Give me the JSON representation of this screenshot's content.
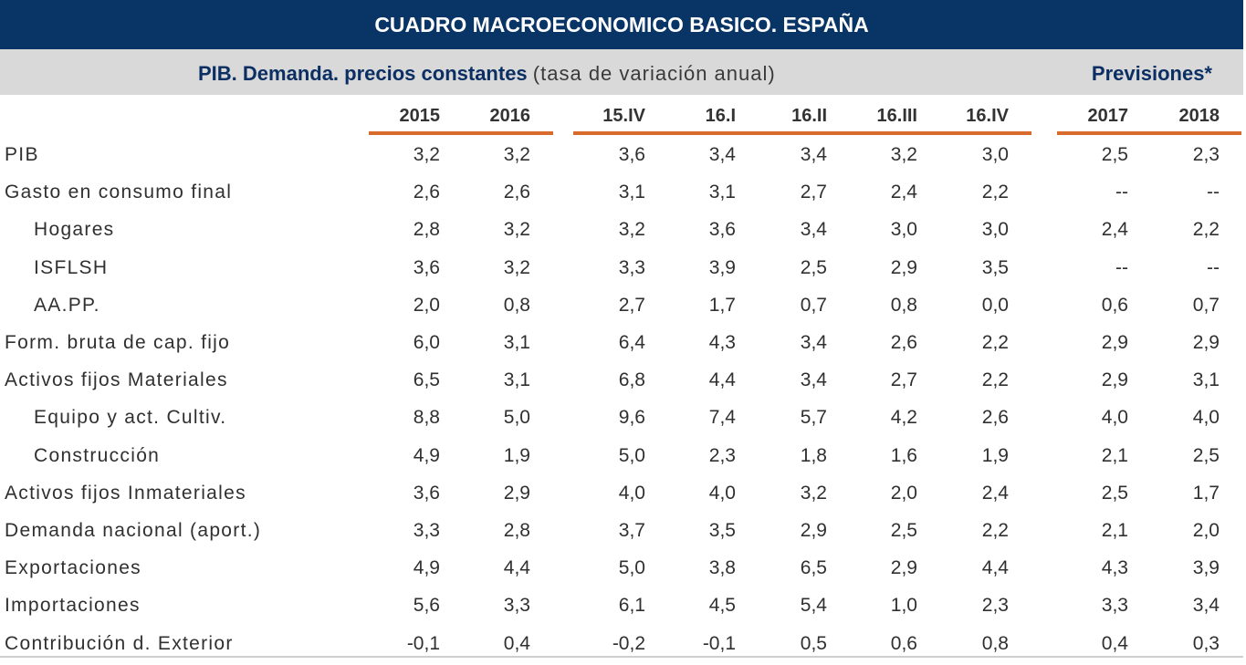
{
  "title": "CUADRO MACROECONOMICO BASICO. ESPAÑA",
  "subtitle": {
    "bold": "PIB. Demanda. precios constantes",
    "normal": "(tasa de variación anual)"
  },
  "previsiones": "Previsiones*",
  "columns": [
    "2015",
    "2016",
    "15.IV",
    "16.I",
    "16.II",
    "16.III",
    "16.IV",
    "2017",
    "2018"
  ],
  "rows": [
    {
      "label": "PIB",
      "indent": false,
      "values": [
        "3,2",
        "3,2",
        "3,6",
        "3,4",
        "3,4",
        "3,2",
        "3,0",
        "2,5",
        "2,3"
      ]
    },
    {
      "label": "Gasto en consumo final",
      "indent": false,
      "values": [
        "2,6",
        "2,6",
        "3,1",
        "3,1",
        "2,7",
        "2,4",
        "2,2",
        "--",
        "--"
      ]
    },
    {
      "label": "Hogares",
      "indent": true,
      "values": [
        "2,8",
        "3,2",
        "3,2",
        "3,6",
        "3,4",
        "3,0",
        "3,0",
        "2,4",
        "2,2"
      ]
    },
    {
      "label": "ISFLSH",
      "indent": true,
      "values": [
        "3,6",
        "3,2",
        "3,3",
        "3,9",
        "2,5",
        "2,9",
        "3,5",
        "--",
        "--"
      ]
    },
    {
      "label": "AA.PP.",
      "indent": true,
      "values": [
        "2,0",
        "0,8",
        "2,7",
        "1,7",
        "0,7",
        "0,8",
        "0,0",
        "0,6",
        "0,7"
      ]
    },
    {
      "label": "Form. bruta de cap. fijo",
      "indent": false,
      "values": [
        "6,0",
        "3,1",
        "6,4",
        "4,3",
        "3,4",
        "2,6",
        "2,2",
        "2,9",
        "2,9"
      ]
    },
    {
      "label": "Activos fijos Materiales",
      "indent": false,
      "values": [
        "6,5",
        "3,1",
        "6,8",
        "4,4",
        "3,4",
        "2,7",
        "2,2",
        "2,9",
        "3,1"
      ]
    },
    {
      "label": "Equipo y act. Cultiv.",
      "indent": true,
      "values": [
        "8,8",
        "5,0",
        "9,6",
        "7,4",
        "5,7",
        "4,2",
        "2,6",
        "4,0",
        "4,0"
      ]
    },
    {
      "label": "Construcción",
      "indent": true,
      "values": [
        "4,9",
        "1,9",
        "5,0",
        "2,3",
        "1,8",
        "1,6",
        "1,9",
        "2,1",
        "2,5"
      ]
    },
    {
      "label": "Activos fijos Inmateriales",
      "indent": false,
      "values": [
        "3,6",
        "2,9",
        "4,0",
        "4,0",
        "3,2",
        "2,0",
        "2,4",
        "2,5",
        "1,7"
      ]
    },
    {
      "label": "Demanda nacional (aport.)",
      "indent": false,
      "values": [
        "3,3",
        "2,8",
        "3,7",
        "3,5",
        "2,9",
        "2,5",
        "2,2",
        "2,1",
        "2,0"
      ]
    },
    {
      "label": "Exportaciones",
      "indent": false,
      "values": [
        "4,9",
        "4,4",
        "5,0",
        "3,8",
        "6,5",
        "2,9",
        "4,4",
        "4,3",
        "3,9"
      ]
    },
    {
      "label": "Importaciones",
      "indent": false,
      "values": [
        "5,6",
        "3,3",
        "6,1",
        "4,5",
        "5,4",
        "1,0",
        "2,3",
        "3,3",
        "3,4"
      ]
    },
    {
      "label": "Contribución d. Exterior",
      "indent": false,
      "values": [
        "-0,1",
        "0,4",
        "-0,2",
        "-0,1",
        "0,5",
        "0,6",
        "0,8",
        "0,4",
        "0,3"
      ]
    }
  ],
  "colors": {
    "title_bg": "#083466",
    "subtitle_bg": "#d9d9d9",
    "accent_line": "#d86a2c",
    "title_text": "#ffffff",
    "subtitle_text": "#0b2f63"
  }
}
